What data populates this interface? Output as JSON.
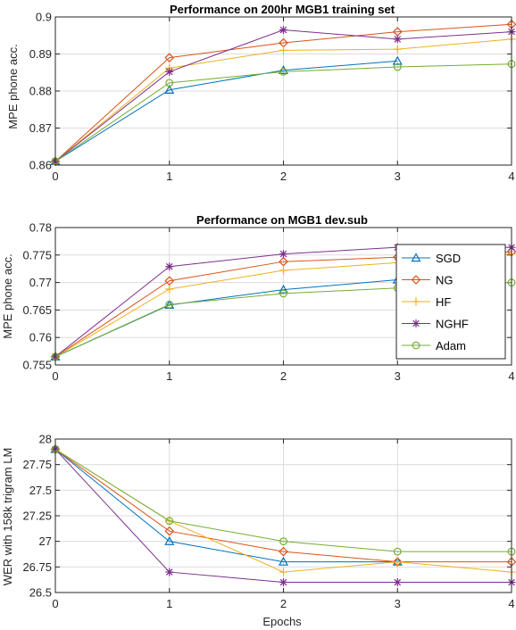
{
  "colors": {
    "SGD": "#0072BD",
    "NG": "#D95319",
    "HF": "#EDB120",
    "NGHF": "#7E2F8E",
    "Adam": "#77AC30"
  },
  "markers": {
    "SGD": "triangle",
    "NG": "diamond",
    "HF": "plus",
    "NGHF": "asterisk",
    "Adam": "circle"
  },
  "chart_data": [
    {
      "type": "line",
      "title": "Performance on 200hr MGB1 training set",
      "xlabel": "",
      "ylabel": "MPE phone acc.",
      "x": [
        0,
        1,
        2,
        3,
        4
      ],
      "xlim": [
        0,
        4
      ],
      "ylim": [
        0.86,
        0.9
      ],
      "xticks": [
        "0",
        "1",
        "2",
        "3",
        "4"
      ],
      "yticks": [
        "0.86",
        "0.87",
        "0.88",
        "0.89",
        "0.9"
      ],
      "grid": true,
      "series": [
        {
          "name": "SGD",
          "x": [
            0,
            1,
            2,
            3
          ],
          "values": [
            0.861,
            0.8803,
            0.8856,
            0.8881
          ]
        },
        {
          "name": "NG",
          "x": [
            0,
            1,
            2,
            3,
            4
          ],
          "values": [
            0.861,
            0.889,
            0.893,
            0.896,
            0.898
          ]
        },
        {
          "name": "HF",
          "x": [
            0,
            1,
            2,
            3,
            4
          ],
          "values": [
            0.861,
            0.8862,
            0.891,
            0.8913,
            0.894
          ]
        },
        {
          "name": "NGHF",
          "x": [
            0,
            1,
            2,
            3,
            4
          ],
          "values": [
            0.861,
            0.8852,
            0.8965,
            0.894,
            0.896
          ]
        },
        {
          "name": "Adam",
          "x": [
            0,
            1,
            2,
            3,
            4
          ],
          "values": [
            0.861,
            0.8822,
            0.8852,
            0.8865,
            0.8873
          ]
        }
      ]
    },
    {
      "type": "line",
      "title": "Performance on MGB1 dev.sub",
      "xlabel": "",
      "ylabel": "MPE phone acc.",
      "x": [
        0,
        1,
        2,
        3,
        4
      ],
      "xlim": [
        0,
        4
      ],
      "ylim": [
        0.755,
        0.78
      ],
      "xticks": [
        "0",
        "1",
        "2",
        "3",
        "4"
      ],
      "yticks": [
        "0.755",
        "0.76",
        "0.765",
        "0.77",
        "0.775",
        "0.78"
      ],
      "grid": true,
      "legend": {
        "position": "bottom-right",
        "entries": [
          "SGD",
          "NG",
          "HF",
          "NGHF",
          "Adam"
        ]
      },
      "series": [
        {
          "name": "SGD",
          "x": [
            0,
            1,
            2,
            3
          ],
          "values": [
            0.7565,
            0.7659,
            0.7687,
            0.7705
          ]
        },
        {
          "name": "NG",
          "x": [
            0,
            1,
            2,
            3,
            4
          ],
          "values": [
            0.7565,
            0.7703,
            0.7738,
            0.7746,
            0.7756
          ]
        },
        {
          "name": "HF",
          "x": [
            0,
            1,
            2,
            3,
            4
          ],
          "values": [
            0.7565,
            0.7688,
            0.7722,
            0.7736,
            0.7752
          ]
        },
        {
          "name": "NGHF",
          "x": [
            0,
            1,
            2,
            3,
            4
          ],
          "values": [
            0.7565,
            0.7729,
            0.7752,
            0.7764,
            0.7764
          ]
        },
        {
          "name": "Adam",
          "x": [
            0,
            1,
            2,
            3,
            4
          ],
          "values": [
            0.7565,
            0.766,
            0.768,
            0.769,
            0.77
          ]
        }
      ]
    },
    {
      "type": "line",
      "title": "",
      "xlabel": "Epochs",
      "ylabel": "WER with 158k trigram LM",
      "x": [
        0,
        1,
        2,
        3,
        4
      ],
      "xlim": [
        0,
        4
      ],
      "ylim": [
        26.5,
        28
      ],
      "xticks": [
        "0",
        "1",
        "2",
        "3",
        "4"
      ],
      "yticks": [
        "26.5",
        "26.75",
        "27",
        "27.25",
        "27.5",
        "27.75",
        "28"
      ],
      "grid": true,
      "series": [
        {
          "name": "SGD",
          "x": [
            0,
            1,
            2,
            3
          ],
          "values": [
            27.9,
            27.0,
            26.8,
            26.8
          ]
        },
        {
          "name": "NG",
          "x": [
            0,
            1,
            2,
            3,
            4
          ],
          "values": [
            27.9,
            27.1,
            26.9,
            26.8,
            26.8
          ]
        },
        {
          "name": "HF",
          "x": [
            0,
            1,
            2,
            3,
            4
          ],
          "values": [
            27.9,
            27.2,
            26.7,
            26.8,
            26.7
          ]
        },
        {
          "name": "NGHF",
          "x": [
            0,
            1,
            2,
            3,
            4
          ],
          "values": [
            27.9,
            26.7,
            26.6,
            26.6,
            26.6
          ]
        },
        {
          "name": "Adam",
          "x": [
            0,
            1,
            2,
            3,
            4
          ],
          "values": [
            27.9,
            27.2,
            27.0,
            26.9,
            26.9
          ]
        }
      ]
    }
  ]
}
